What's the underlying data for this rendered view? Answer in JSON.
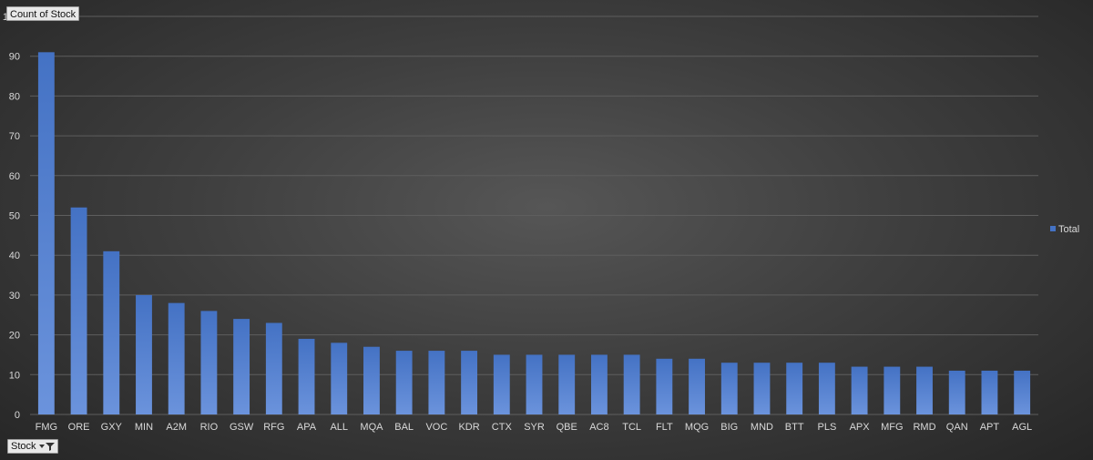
{
  "value_field_label": "Count of Stock",
  "axis_field_label": "Stock",
  "colors": {
    "bar": "#4472c4",
    "bar_light": "#6b93dc",
    "grid": "#5e5e5e",
    "text": "#d9d9d9"
  },
  "chart_data": {
    "type": "bar",
    "categories": [
      "FMG",
      "ORE",
      "GXY",
      "MIN",
      "A2M",
      "RIO",
      "GSW",
      "RFG",
      "APA",
      "ALL",
      "MQA",
      "BAL",
      "VOC",
      "KDR",
      "CTX",
      "SYR",
      "QBE",
      "AC8",
      "TCL",
      "FLT",
      "MQG",
      "BIG",
      "MND",
      "BTT",
      "PLS",
      "APX",
      "MFG",
      "RMD",
      "QAN",
      "APT",
      "AGL"
    ],
    "series": [
      {
        "name": "Total",
        "values": [
          91,
          52,
          41,
          30,
          28,
          26,
          24,
          23,
          19,
          18,
          17,
          16,
          16,
          16,
          15,
          15,
          15,
          15,
          15,
          14,
          14,
          13,
          13,
          13,
          13,
          12,
          12,
          12,
          11,
          11,
          11
        ]
      }
    ],
    "ylim": [
      0,
      100
    ],
    "yticks": [
      0,
      10,
      20,
      30,
      40,
      50,
      60,
      70,
      80,
      90
    ],
    "ytick_top_label": "1",
    "grid": true,
    "legend_position": "right"
  }
}
